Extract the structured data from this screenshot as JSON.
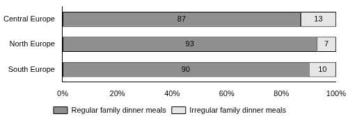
{
  "chart_data": {
    "type": "bar",
    "orientation": "horizontal",
    "stacked": true,
    "categories": [
      "Central Europe",
      "North Europe",
      "South Europe"
    ],
    "series": [
      {
        "name": "Regular family dinner meals",
        "color": "#8f8f8f",
        "values": [
          87,
          93,
          90
        ]
      },
      {
        "name": "Irregular family dinner meals",
        "color": "#e6e6e6",
        "values": [
          13,
          7,
          10
        ]
      }
    ],
    "xlim": [
      0,
      100
    ],
    "xticks": [
      {
        "value": 0,
        "label": "0%"
      },
      {
        "value": 20,
        "label": "20%"
      },
      {
        "value": 40,
        "label": "40%"
      },
      {
        "value": 60,
        "label": "60%"
      },
      {
        "value": 80,
        "label": "80%"
      },
      {
        "value": 100,
        "label": "100%"
      }
    ],
    "grid": false,
    "legend": "bottom",
    "data_labels": true
  }
}
